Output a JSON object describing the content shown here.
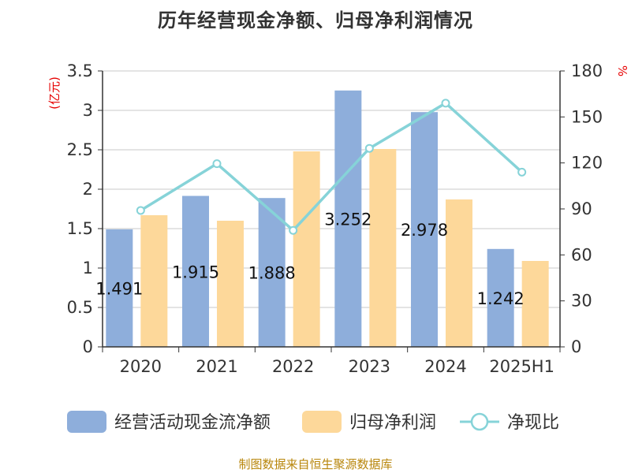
{
  "title": "历年经营现金净额、归母净利润情况",
  "source_note": "制图数据来自恒生聚源数据库",
  "colors": {
    "cash_bar": "#8eaedb",
    "profit_bar": "#fdd89a",
    "ratio_line": "#86d3d8",
    "axis": "#333333",
    "grid": "#c8c8c8",
    "unit": "#e60000"
  },
  "chart_data": {
    "type": "bar",
    "title": "历年经营现金净额、归母净利润情况",
    "categories": [
      "2020",
      "2021",
      "2022",
      "2023",
      "2024",
      "2025H1"
    ],
    "y_left": {
      "unit_label": "(亿元)",
      "ylim": [
        0,
        3.5
      ],
      "ticks": [
        "0",
        "0.5",
        "1",
        "1.5",
        "2",
        "2.5",
        "3",
        "3.5"
      ]
    },
    "y_right": {
      "unit_label": "%",
      "ylim": [
        0,
        180
      ],
      "ticks": [
        "0",
        "30",
        "60",
        "90",
        "120",
        "150",
        "180"
      ]
    },
    "series": [
      {
        "name": "经营活动现金流净额",
        "type": "bar",
        "axis": "left",
        "values": [
          1.491,
          1.915,
          1.888,
          3.252,
          2.978,
          1.242
        ],
        "labels": [
          "1.491",
          "1.915",
          "1.888",
          "3.252",
          "2.978",
          "1.242"
        ]
      },
      {
        "name": "归母净利润",
        "type": "bar",
        "axis": "left",
        "values": [
          1.67,
          1.6,
          2.48,
          2.51,
          1.87,
          1.09
        ]
      },
      {
        "name": "净现比",
        "type": "line",
        "axis": "right",
        "values": [
          89,
          119.5,
          76,
          129.5,
          159,
          114
        ]
      }
    ],
    "grid": true,
    "legend_position": "bottom"
  }
}
